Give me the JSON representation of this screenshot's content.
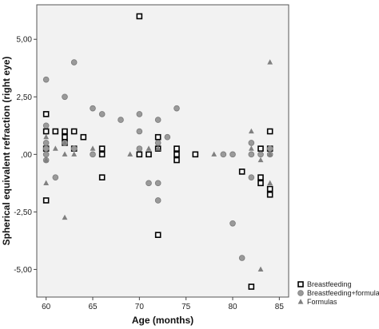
{
  "chart_data": {
    "type": "scatter",
    "title": "",
    "xlabel": "Age (months)",
    "ylabel": "Spherical equivalent refraction (right eye)",
    "xlim": [
      59,
      86
    ],
    "ylim": [
      -6.2,
      6.5
    ],
    "xticks": [
      60,
      65,
      70,
      75,
      80,
      85
    ],
    "xtick_labels": [
      "60",
      "65",
      "70",
      "75",
      "80",
      "85"
    ],
    "yticks": [
      5,
      2.5,
      0,
      -2.5,
      -5
    ],
    "ytick_labels": [
      "5,00",
      "2,50",
      ",00",
      "-2,50",
      "-5,00"
    ],
    "grid": false,
    "legend_position": "bottom-right outside",
    "plot_background": "#f2f2f2",
    "series": [
      {
        "name": "Breastfeeding",
        "marker": "square",
        "color": "#000000",
        "points": [
          [
            60,
            1.75
          ],
          [
            60,
            1.0
          ],
          [
            60,
            0.25
          ],
          [
            60,
            -2.0
          ],
          [
            61,
            1.0
          ],
          [
            62,
            1.0
          ],
          [
            62,
            0.75
          ],
          [
            62,
            0.5
          ],
          [
            63,
            1.0
          ],
          [
            63,
            0.25
          ],
          [
            64,
            0.75
          ],
          [
            66,
            0.25
          ],
          [
            66,
            0.0
          ],
          [
            66,
            -1.0
          ],
          [
            70,
            6.0
          ],
          [
            70,
            0.0
          ],
          [
            71,
            0.0
          ],
          [
            72,
            0.75
          ],
          [
            72,
            0.25
          ],
          [
            72,
            -3.5
          ],
          [
            74,
            0.25
          ],
          [
            74,
            0.0
          ],
          [
            74,
            -0.25
          ],
          [
            76,
            0.0
          ],
          [
            81,
            -0.75
          ],
          [
            82,
            -5.75
          ],
          [
            83,
            0.25
          ],
          [
            83,
            -1.0
          ],
          [
            83,
            -1.25
          ],
          [
            84,
            1.0
          ],
          [
            84,
            0.25
          ],
          [
            84,
            -1.5
          ],
          [
            84,
            -1.75
          ]
        ]
      },
      {
        "name": "Breastfeeding+formula",
        "marker": "circle",
        "color": "#9a9a9a",
        "points": [
          [
            60,
            3.25
          ],
          [
            60,
            1.25
          ],
          [
            60,
            0.5
          ],
          [
            60,
            0.25
          ],
          [
            60,
            0.0
          ],
          [
            60,
            -0.25
          ],
          [
            61,
            -1.0
          ],
          [
            62,
            2.5
          ],
          [
            62,
            0.5
          ],
          [
            63,
            4.0
          ],
          [
            63,
            0.25
          ],
          [
            65,
            2.0
          ],
          [
            65,
            0.0
          ],
          [
            66,
            1.75
          ],
          [
            68,
            1.5
          ],
          [
            70,
            1.75
          ],
          [
            70,
            1.0
          ],
          [
            70,
            0.25
          ],
          [
            71,
            -1.25
          ],
          [
            72,
            1.5
          ],
          [
            72,
            0.5
          ],
          [
            72,
            -1.25
          ],
          [
            72,
            -2.0
          ],
          [
            73,
            0.75
          ],
          [
            74,
            2.0
          ],
          [
            79,
            0.0
          ],
          [
            80,
            0.0
          ],
          [
            80,
            -3.0
          ],
          [
            81,
            -4.5
          ],
          [
            82,
            0.5
          ],
          [
            82,
            0.0
          ],
          [
            82,
            -1.0
          ],
          [
            83,
            0.0
          ],
          [
            84,
            0.25
          ],
          [
            84,
            0.0
          ]
        ]
      },
      {
        "name": "Formulas",
        "marker": "triangle",
        "color": "#808080",
        "points": [
          [
            60,
            0.75
          ],
          [
            60,
            -0.25
          ],
          [
            60,
            -1.25
          ],
          [
            61,
            0.25
          ],
          [
            62,
            0.5
          ],
          [
            62,
            0.0
          ],
          [
            62,
            -2.75
          ],
          [
            63,
            0.0
          ],
          [
            65,
            0.25
          ],
          [
            69,
            0.0
          ],
          [
            71,
            0.25
          ],
          [
            72,
            0.25
          ],
          [
            78,
            0.0
          ],
          [
            82,
            1.0
          ],
          [
            82,
            0.25
          ],
          [
            83,
            -0.25
          ],
          [
            83,
            -5.0
          ],
          [
            84,
            4.0
          ],
          [
            84,
            0.0
          ],
          [
            84,
            -1.25
          ]
        ]
      }
    ]
  }
}
